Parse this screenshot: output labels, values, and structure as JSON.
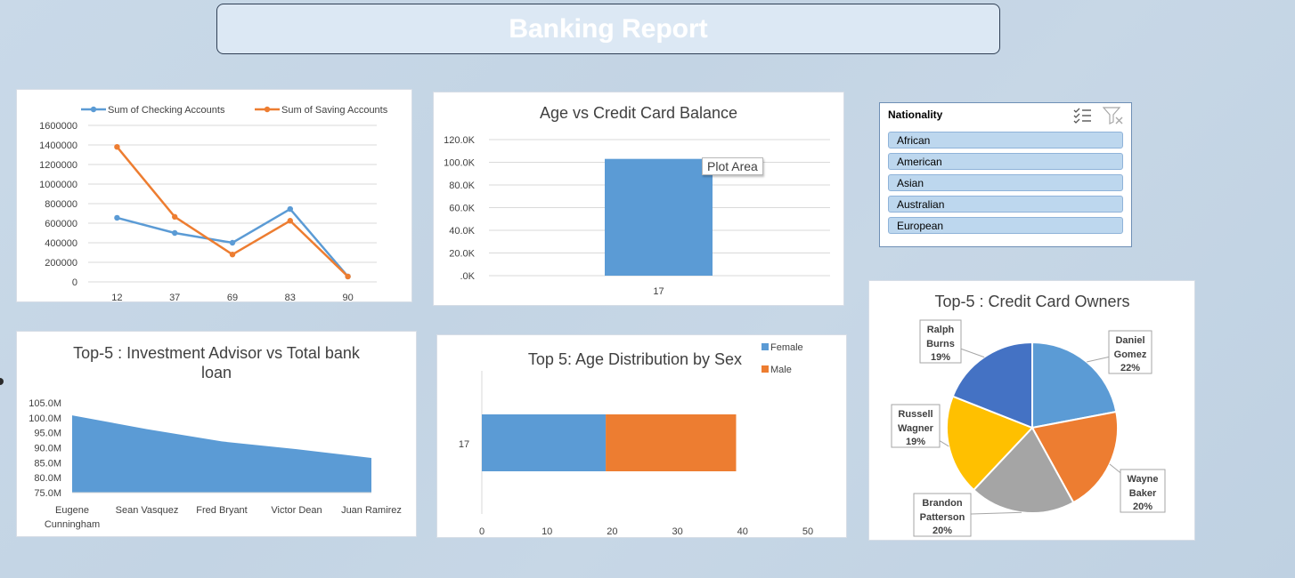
{
  "header": {
    "title": "Banking Report"
  },
  "colors": {
    "blue": "#5b9bd5",
    "orange": "#ed7d31",
    "gray": "#a5a5a5",
    "gold": "#ffc000",
    "darkblue": "#4472c4"
  },
  "slicer": {
    "title": "Nationality",
    "multiselect_icon": "multi-select-icon",
    "clear_icon": "clear-filter-icon",
    "items": [
      "African",
      "American",
      "Asian",
      "Australian",
      "European"
    ]
  },
  "tooltip": "Plot Area",
  "chart_data": [
    {
      "id": "accounts",
      "type": "line",
      "title": "",
      "categories": [
        "12",
        "37",
        "69",
        "83",
        "90"
      ],
      "series": [
        {
          "name": "Sum of Checking Accounts",
          "color": "#5b9bd5",
          "values": [
            655000,
            500000,
            400000,
            745000,
            55000
          ]
        },
        {
          "name": "Sum of Saving Accounts",
          "color": "#ed7d31",
          "values": [
            1380000,
            665000,
            280000,
            625000,
            55000
          ]
        }
      ],
      "ylim": [
        0,
        1600000
      ],
      "yticks": [
        "0",
        "200000",
        "400000",
        "600000",
        "800000",
        "1000000",
        "1200000",
        "1400000",
        "1600000"
      ],
      "legend": "top",
      "grid": true
    },
    {
      "id": "age-balance",
      "type": "bar",
      "title": "Age vs Credit Card Balance",
      "categories": [
        "17"
      ],
      "values": [
        103000
      ],
      "ylim": [
        0,
        120000
      ],
      "yticks": [
        ".0K",
        "20.0K",
        "40.0K",
        "60.0K",
        "80.0K",
        "100.0K",
        "120.0K"
      ],
      "grid": true
    },
    {
      "id": "advisor-loan",
      "type": "area",
      "title": "Top-5 : Investment Advisor vs Total bank loan",
      "categories": [
        "Eugene Cunningham",
        "Sean Vasquez",
        "Fred Bryant",
        "Victor Dean",
        "Juan Ramirez"
      ],
      "values": [
        100800000,
        96200000,
        92100000,
        89500000,
        86600000
      ],
      "ylim": [
        75000000,
        105000000
      ],
      "yticks": [
        "75.0M",
        "80.0M",
        "85.0M",
        "90.0M",
        "95.0M",
        "100.0M",
        "105.0M"
      ]
    },
    {
      "id": "age-sex",
      "type": "bar",
      "orientation": "horizontal",
      "stacked": true,
      "title": "Top 5: Age Distribution by Sex",
      "categories": [
        "17"
      ],
      "series": [
        {
          "name": "Female",
          "color": "#5b9bd5",
          "values": [
            19
          ]
        },
        {
          "name": "Male",
          "color": "#ed7d31",
          "values": [
            20
          ]
        }
      ],
      "xlim": [
        0,
        50
      ],
      "xticks": [
        "0",
        "10",
        "20",
        "30",
        "40",
        "50"
      ],
      "legend": "top-right"
    },
    {
      "id": "card-owners",
      "type": "pie",
      "title": "Top-5 : Credit Card Owners",
      "slices": [
        {
          "name": "Daniel Gomez",
          "percent": 22,
          "label": "22%",
          "color": "#5b9bd5"
        },
        {
          "name": "Wayne Baker",
          "percent": 20,
          "label": "20%",
          "color": "#ed7d31"
        },
        {
          "name": "Brandon Patterson",
          "percent": 20,
          "label": "20%",
          "color": "#a5a5a5"
        },
        {
          "name": "Russell Wagner",
          "percent": 19,
          "label": "19%",
          "color": "#ffc000"
        },
        {
          "name": "Ralph Burns",
          "percent": 19,
          "label": "19%",
          "color": "#4472c4"
        }
      ]
    }
  ]
}
